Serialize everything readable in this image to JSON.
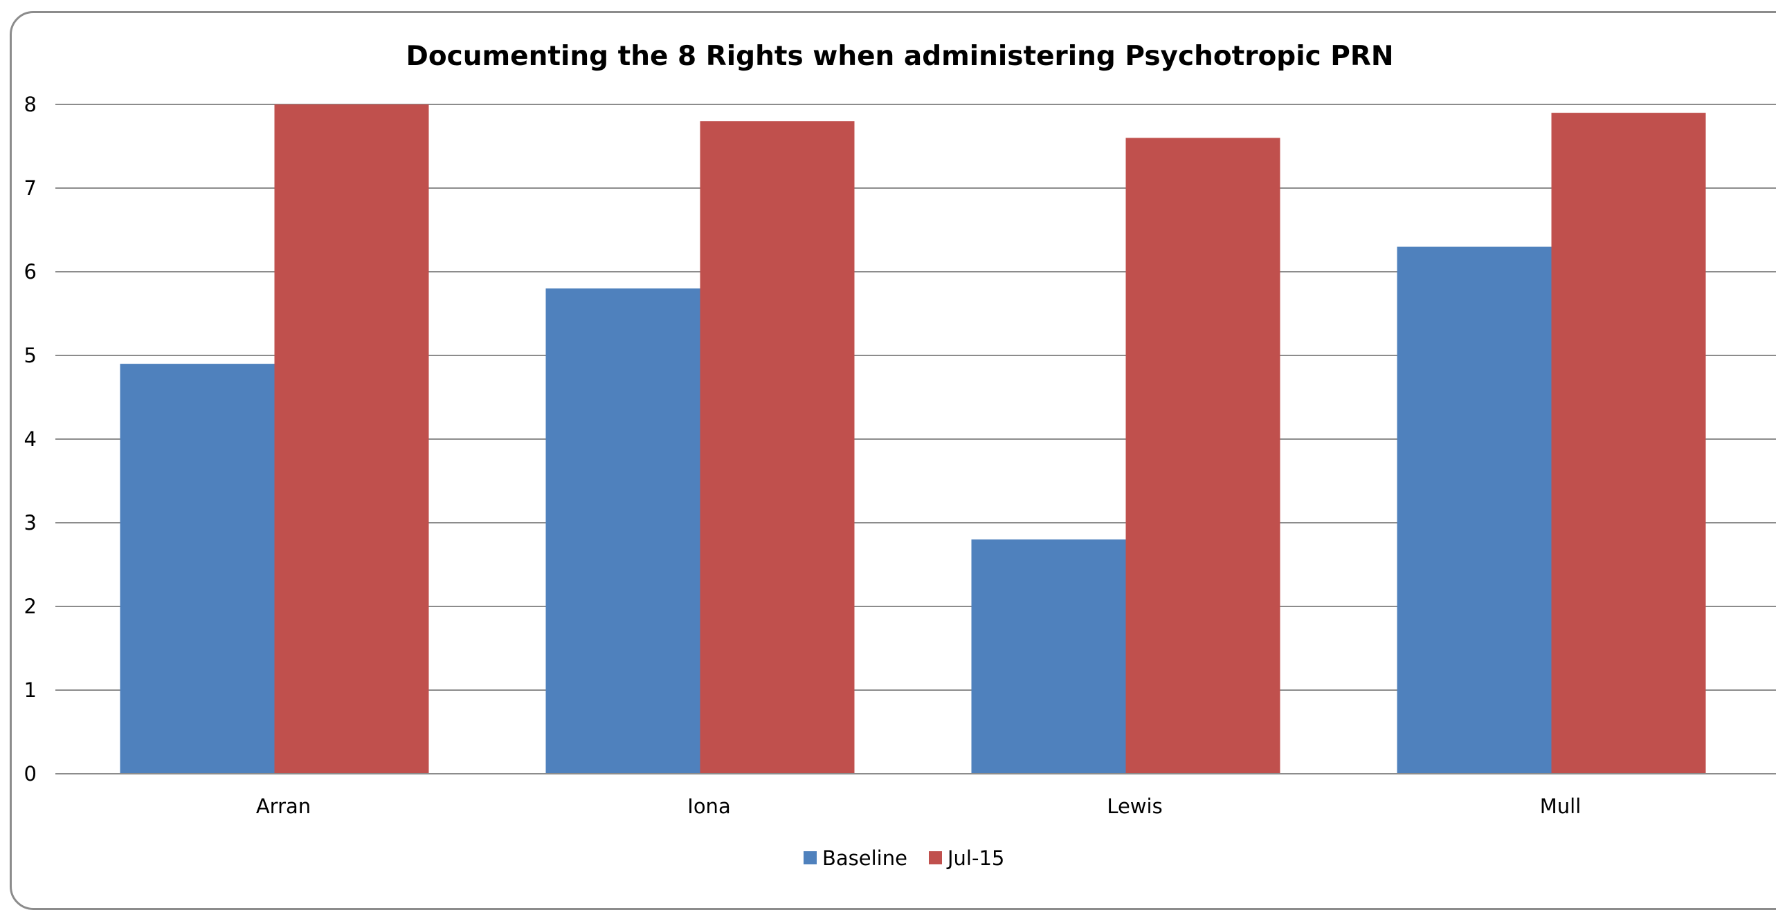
{
  "chart_data": {
    "type": "bar",
    "title": "Documenting the 8 Rights when administering Psychotropic PRN",
    "xlabel": "",
    "ylabel": "",
    "categories": [
      "Arran",
      "Iona",
      "Lewis",
      "Mull"
    ],
    "series": [
      {
        "name": "Baseline",
        "color": "#4f81bd",
        "values": [
          4.9,
          5.8,
          2.8,
          6.3
        ]
      },
      {
        "name": "Jul-15",
        "color": "#c0504d",
        "values": [
          8.0,
          7.8,
          7.6,
          7.9
        ]
      }
    ],
    "ylim": [
      0,
      8
    ],
    "yticks": [
      "0",
      "1",
      "2",
      "3",
      "4",
      "5",
      "6",
      "7",
      "8"
    ],
    "grid": true,
    "legend_position": "bottom"
  }
}
